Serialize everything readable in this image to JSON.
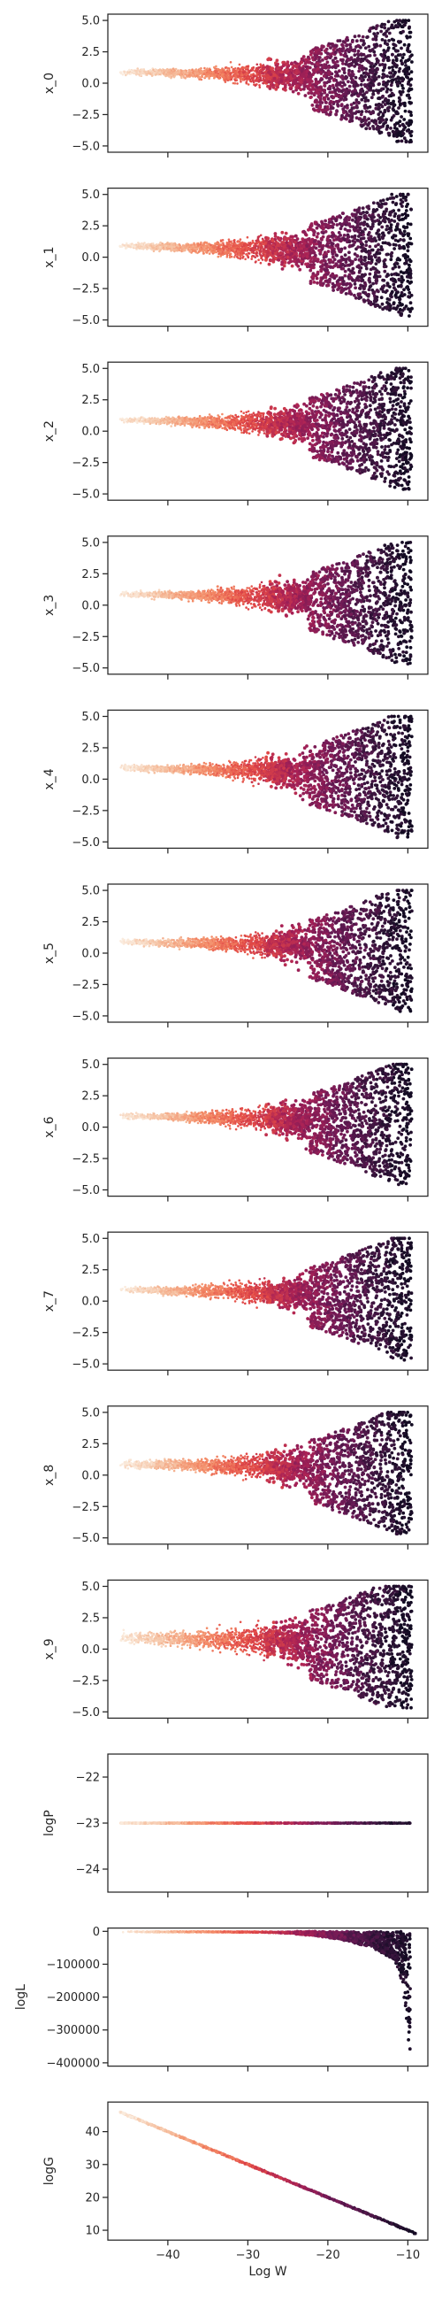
{
  "chart_data": {
    "type": "scatter",
    "layout": "13 vertically stacked panels sharing the x axis",
    "colormap": "rocket",
    "color_meaning": "density of samples (light = early/low Log W, dark = late/high Log W)",
    "background": "#ffffff",
    "axis_color": "#262626",
    "grid": false,
    "legend": "none",
    "xlabel": "Log W",
    "xlim": [
      -47.5,
      -7.5
    ],
    "xticks": [
      -40,
      -30,
      -20,
      -10
    ],
    "xtick_labels": [
      "−40",
      "−30",
      "−20",
      "−10"
    ],
    "panels": [
      {
        "ylabel": "x_0",
        "kind": "funnel",
        "ylim": [
          -5.5,
          5.5
        ],
        "yticks": [
          "5.0",
          "2.5",
          "0.0",
          "−2.5",
          "−5.0"
        ],
        "ytick_values": [
          5,
          2.5,
          0,
          -2.5,
          -5
        ],
        "spread_start": 1.0
      },
      {
        "ylabel": "x_1",
        "kind": "funnel",
        "ylim": [
          -5.5,
          5.5
        ],
        "yticks": [
          "5.0",
          "2.5",
          "0.0",
          "−2.5",
          "−5.0"
        ],
        "ytick_values": [
          5,
          2.5,
          0,
          -2.5,
          -5
        ],
        "spread_start": 1.0
      },
      {
        "ylabel": "x_2",
        "kind": "funnel",
        "ylim": [
          -5.5,
          5.5
        ],
        "yticks": [
          "5.0",
          "2.5",
          "0.0",
          "−2.5",
          "−5.0"
        ],
        "ytick_values": [
          5,
          2.5,
          0,
          -2.5,
          -5
        ],
        "spread_start": 1.0
      },
      {
        "ylabel": "x_3",
        "kind": "funnel",
        "ylim": [
          -5.5,
          5.5
        ],
        "yticks": [
          "5.0",
          "2.5",
          "0.0",
          "−2.5",
          "−5.0"
        ],
        "ytick_values": [
          5,
          2.5,
          0,
          -2.5,
          -5
        ],
        "spread_start": 1.0
      },
      {
        "ylabel": "x_4",
        "kind": "funnel",
        "ylim": [
          -5.5,
          5.5
        ],
        "yticks": [
          "5.0",
          "2.5",
          "0.0",
          "−2.5",
          "−5.0"
        ],
        "ytick_values": [
          5,
          2.5,
          0,
          -2.5,
          -5
        ],
        "spread_start": 1.0
      },
      {
        "ylabel": "x_5",
        "kind": "funnel",
        "ylim": [
          -5.5,
          5.5
        ],
        "yticks": [
          "5.0",
          "2.5",
          "0.0",
          "−2.5",
          "−5.0"
        ],
        "ytick_values": [
          5,
          2.5,
          0,
          -2.5,
          -5
        ],
        "spread_start": 1.0
      },
      {
        "ylabel": "x_6",
        "kind": "funnel",
        "ylim": [
          -5.5,
          5.5
        ],
        "yticks": [
          "5.0",
          "2.5",
          "0.0",
          "−2.5",
          "−5.0"
        ],
        "ytick_values": [
          5,
          2.5,
          0,
          -2.5,
          -5
        ],
        "spread_start": 1.0
      },
      {
        "ylabel": "x_7",
        "kind": "funnel",
        "ylim": [
          -5.5,
          5.5
        ],
        "yticks": [
          "5.0",
          "2.5",
          "0.0",
          "−2.5",
          "−5.0"
        ],
        "ytick_values": [
          5,
          2.5,
          0,
          -2.5,
          -5
        ],
        "spread_start": 1.0
      },
      {
        "ylabel": "x_8",
        "kind": "funnel",
        "ylim": [
          -5.5,
          5.5
        ],
        "yticks": [
          "5.0",
          "2.5",
          "0.0",
          "−2.5",
          "−5.0"
        ],
        "ytick_values": [
          5,
          2.5,
          0,
          -2.5,
          -5
        ],
        "spread_start": 1.4
      },
      {
        "ylabel": "x_9",
        "kind": "funnel",
        "ylim": [
          -5.5,
          5.5
        ],
        "yticks": [
          "5.0",
          "2.5",
          "0.0",
          "−2.5",
          "−5.0"
        ],
        "ytick_values": [
          5,
          2.5,
          0,
          -2.5,
          -5
        ],
        "spread_start": 2.2
      },
      {
        "ylabel": "logP",
        "kind": "line",
        "ylim": [
          -24.5,
          -21.5
        ],
        "yticks": [
          "−22",
          "−23",
          "−24"
        ],
        "ytick_values": [
          -22,
          -23,
          -24
        ],
        "y_const": -23.0
      },
      {
        "ylabel": "logL",
        "kind": "logL",
        "ylim": [
          -410000,
          10000
        ],
        "yticks": [
          "0",
          "−100000",
          "−200000",
          "−300000",
          "−400000"
        ],
        "ytick_values": [
          0,
          -100000,
          -200000,
          -300000,
          -400000
        ]
      },
      {
        "ylabel": "logG",
        "kind": "linear",
        "ylim": [
          7,
          49
        ],
        "yticks": [
          "40",
          "30",
          "20",
          "10"
        ],
        "ytick_values": [
          40,
          30,
          20,
          10
        ],
        "line": {
          "x_start": -46,
          "y_start": 46,
          "x_end": -9,
          "y_end": 9
        }
      }
    ]
  }
}
